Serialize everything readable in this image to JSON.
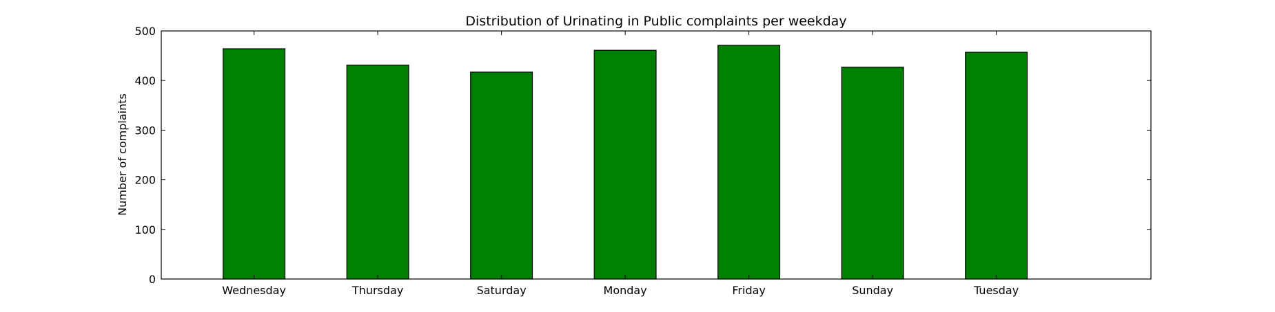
{
  "colors": {
    "bar_fill": "#008000",
    "bar_stroke": "#000000",
    "axis": "#000000",
    "background": "#ffffff"
  },
  "chart_data": {
    "type": "bar",
    "title": "Distribution of  Urinating in Public complaints per weekday",
    "xlabel": "",
    "ylabel": "Number of complaints",
    "categories": [
      "Wednesday",
      "Thursday",
      "Saturday",
      "Monday",
      "Friday",
      "Sunday",
      "Tuesday"
    ],
    "values": [
      464,
      431,
      417,
      461,
      471,
      427,
      457
    ],
    "ylim": [
      0,
      500
    ],
    "yticks": [
      0,
      100,
      200,
      300,
      400,
      500
    ],
    "grid": false,
    "legend": "none"
  }
}
